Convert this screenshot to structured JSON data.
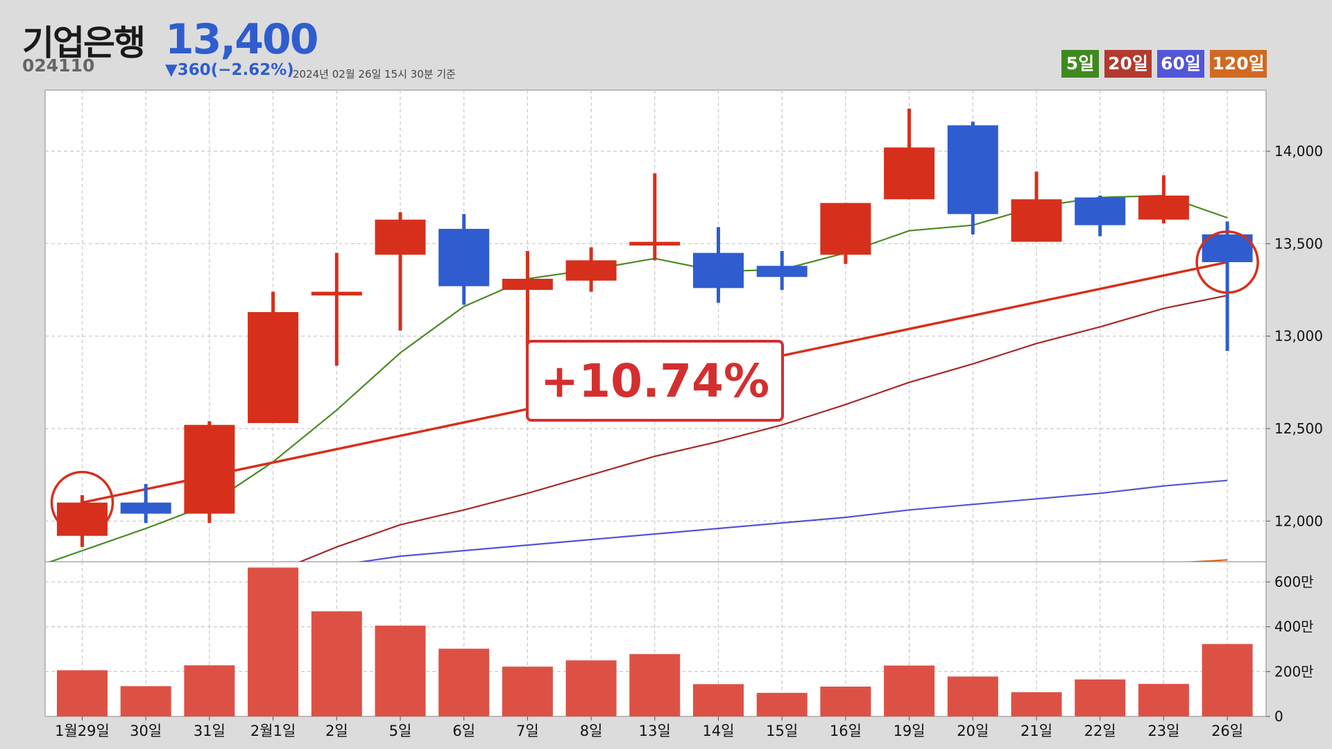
{
  "header": {
    "name": "기업은행",
    "price": "13,400",
    "code": "024110",
    "change": "▼360(−2.62%)",
    "timestamp": "2024년 02월 26일 15시 30분 기준"
  },
  "legend": [
    {
      "label": "5일",
      "color": "#3f8a1f"
    },
    {
      "label": "20일",
      "color": "#b23a2e"
    },
    {
      "label": "60일",
      "color": "#5356d6"
    },
    {
      "label": "120일",
      "color": "#d06a22"
    }
  ],
  "annotation": {
    "text": "+10.74%",
    "from_index": 0,
    "to_index": 18
  },
  "colors": {
    "up": "#d6301c",
    "down": "#2f5dcf",
    "volume": "#dd5145",
    "ma5": "#4a8a20",
    "ma20": "#a52a2a",
    "ma60": "#5353d6",
    "ma120": "#d06a22",
    "trend": "#d6301c",
    "background": "#dcdcdc",
    "plot_background": "#ffffff"
  },
  "chart_data": {
    "type": "candlestick",
    "categories": [
      "1월29일",
      "30일",
      "31일",
      "2월1일",
      "2일",
      "5일",
      "6일",
      "7일",
      "8일",
      "13일",
      "14일",
      "15일",
      "16일",
      "19일",
      "20일",
      "21일",
      "22일",
      "23일",
      "26일"
    ],
    "ohlc": [
      {
        "open": 11920,
        "high": 12140,
        "low": 11860,
        "close": 12100
      },
      {
        "open": 12100,
        "high": 12200,
        "low": 11990,
        "close": 12040
      },
      {
        "open": 12040,
        "high": 12540,
        "low": 11990,
        "close": 12520
      },
      {
        "open": 12530,
        "high": 13240,
        "low": 12530,
        "close": 13130
      },
      {
        "open": 13220,
        "high": 13450,
        "low": 12840,
        "close": 13240
      },
      {
        "open": 13440,
        "high": 13670,
        "low": 13030,
        "close": 13630
      },
      {
        "open": 13580,
        "high": 13660,
        "low": 13170,
        "close": 13270
      },
      {
        "open": 13250,
        "high": 13460,
        "low": 12940,
        "close": 13310
      },
      {
        "open": 13300,
        "high": 13480,
        "low": 13240,
        "close": 13410
      },
      {
        "open": 13490,
        "high": 13880,
        "low": 13410,
        "close": 13510
      },
      {
        "open": 13450,
        "high": 13590,
        "low": 13180,
        "close": 13260
      },
      {
        "open": 13380,
        "high": 13460,
        "low": 13250,
        "close": 13320
      },
      {
        "open": 13440,
        "high": 13720,
        "low": 13390,
        "close": 13720
      },
      {
        "open": 13740,
        "high": 14230,
        "low": 13740,
        "close": 14020
      },
      {
        "open": 14140,
        "high": 14160,
        "low": 13550,
        "close": 13660
      },
      {
        "open": 13510,
        "high": 13890,
        "low": 13510,
        "close": 13740
      },
      {
        "open": 13750,
        "high": 13760,
        "low": 13540,
        "close": 13600
      },
      {
        "open": 13630,
        "high": 13870,
        "low": 13610,
        "close": 13760
      },
      {
        "open": 13550,
        "high": 13620,
        "low": 12920,
        "close": 13400
      }
    ],
    "ma5": [
      11840,
      11960,
      12090,
      12320,
      12600,
      12910,
      13160,
      13310,
      13360,
      13420,
      13350,
      13360,
      13450,
      13570,
      13600,
      13700,
      13750,
      13760,
      13640
    ],
    "ma20": [
      11610,
      11640,
      11670,
      11720,
      11860,
      11980,
      12060,
      12150,
      12250,
      12350,
      12430,
      12520,
      12630,
      12750,
      12850,
      12960,
      13050,
      13150,
      13220
    ],
    "ma60": [
      11580,
      11620,
      11670,
      11720,
      11760,
      11810,
      11840,
      11870,
      11900,
      11930,
      11960,
      11990,
      12020,
      12060,
      12090,
      12120,
      12150,
      12190,
      12220
    ],
    "ma120": [
      11520,
      11540,
      11550,
      11570,
      11590,
      11600,
      11620,
      11630,
      11650,
      11660,
      11680,
      11690,
      11700,
      11720,
      11730,
      11750,
      11760,
      11770,
      11790
    ],
    "trendline": {
      "from": {
        "index": 0,
        "value": 12100
      },
      "to": {
        "index": 18,
        "value": 13400
      }
    },
    "highlight_indices": [
      0,
      18
    ],
    "volume": [
      2060000,
      1350000,
      2280000,
      6640000,
      4690000,
      4050000,
      3020000,
      2220000,
      2500000,
      2780000,
      1440000,
      1050000,
      1330000,
      2270000,
      1780000,
      1080000,
      1650000,
      1450000,
      3230000
    ],
    "y_ticks": [
      12000,
      12500,
      13000,
      13500,
      14000
    ],
    "y_tick_labels": [
      "12,000",
      "12,500",
      "13,000",
      "13,500",
      "14,000"
    ],
    "ylim": [
      11780,
      14330
    ],
    "volume_ticks": [
      0,
      2000000,
      4000000,
      6000000
    ],
    "volume_tick_labels": [
      "0",
      "200만",
      "400만",
      "600만"
    ],
    "volume_ylim": [
      0,
      6900000
    ],
    "grid": true
  }
}
